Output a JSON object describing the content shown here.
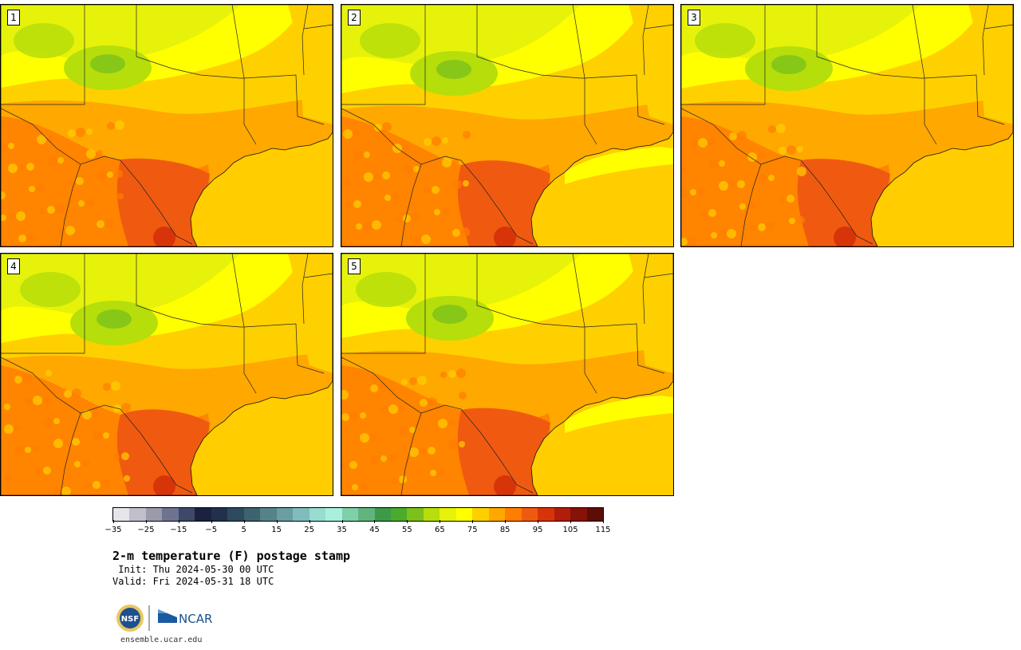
{
  "panels": [
    {
      "label": "1",
      "variant": 0
    },
    {
      "label": "2",
      "variant": 1
    },
    {
      "label": "3",
      "variant": 2
    },
    {
      "label": "4",
      "variant": 3
    },
    {
      "label": "5",
      "variant": 4
    }
  ],
  "legend": {
    "tick_values": [
      "−35",
      "−25",
      "−15",
      "−5",
      "5",
      "15",
      "25",
      "35",
      "45",
      "55",
      "65",
      "75",
      "85",
      "95",
      "105",
      "115"
    ],
    "colors": [
      "#e6e6ea",
      "#c0c0cc",
      "#9a9aac",
      "#6e7490",
      "#3e4868",
      "#1a2240",
      "#22304e",
      "#2e4a5e",
      "#3e6270",
      "#56828a",
      "#6a9ea2",
      "#80bcbc",
      "#98dcd0",
      "#a8f0dc",
      "#7ed0a8",
      "#62b47e",
      "#3c9a48",
      "#4caa2c",
      "#7cc01c",
      "#b6de0a",
      "#e6f20a",
      "#ffff00",
      "#ffd000",
      "#ffa800",
      "#ff7e00",
      "#f05a10",
      "#d8340a",
      "#b01e0a",
      "#861208",
      "#5c0e06"
    ]
  },
  "title": "2-m temperature (F) postage stamp",
  "init": " Init: Thu 2024-05-30 00 UTC",
  "valid": "Valid: Fri 2024-05-31 18 UTC",
  "logos": {
    "nsf_text": "NSF",
    "ncar_text": "NCAR"
  },
  "site": "ensemble.ucar.edu"
}
